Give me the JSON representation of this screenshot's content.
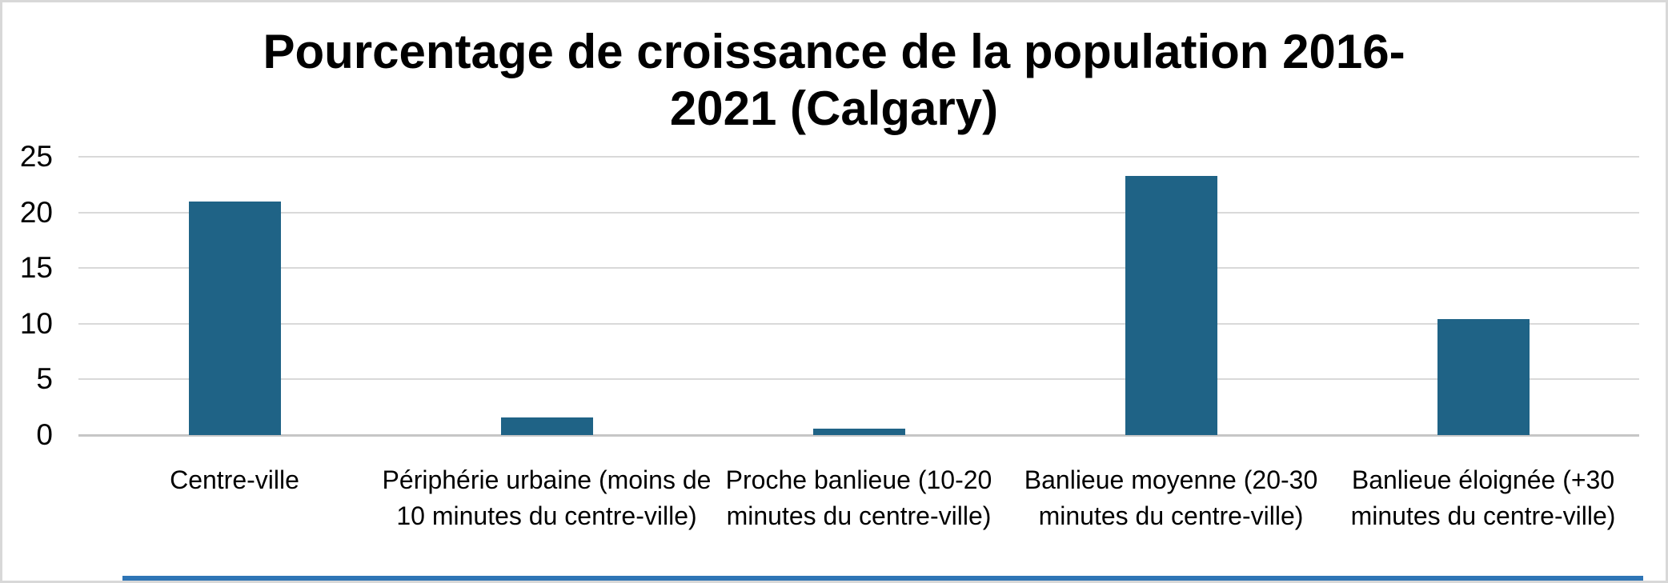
{
  "chart_data": {
    "type": "bar",
    "title": "Pourcentage de croissance de la population 2016-2021 (Calgary)",
    "title_lines": [
      "Pourcentage de croissance de la population 2016-",
      "2021 (Calgary)"
    ],
    "categories": [
      "Centre-ville",
      "Périphérie urbaine (moins de 10 minutes du centre-ville)",
      "Proche banlieue (10-20 minutes du centre-ville)",
      "Banlieue moyenne (20-30 minutes du centre-ville)",
      "Banlieue éloignée (+30 minutes du centre-ville)"
    ],
    "values": [
      21.0,
      1.6,
      0.6,
      23.3,
      10.4
    ],
    "unit": "percent",
    "xlabel": "",
    "ylabel": "",
    "ylim": [
      0,
      25
    ],
    "yticks": [
      0,
      5,
      10,
      15,
      20,
      25
    ],
    "grid": "horizontal",
    "legend": "none",
    "bar_color": "#1F6386",
    "gridline_color": "#D9D9D9",
    "baseline_color": "#C6C6C6",
    "frame_border_color": "#D8D8D8",
    "background_color": "#FFFFFF",
    "bottom_strip_color": "#2E75B6"
  }
}
